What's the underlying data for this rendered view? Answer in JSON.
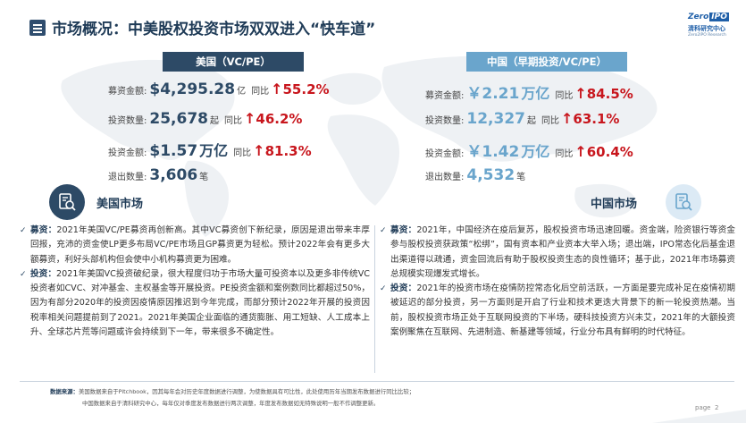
{
  "header": {
    "title": "市场概况：中美股权投资市场双双进入“快车道”",
    "logo": {
      "brand": "Zero",
      "brand_box": "IPO",
      "cn": "清科研究中心",
      "en": "Zero2IPO Research"
    }
  },
  "us": {
    "heading": "美国（VC/PE）",
    "stats": [
      {
        "label": "募资金额:",
        "value": "$4,295.28",
        "unit": "亿",
        "yoy_label": "同比",
        "arrow": "↑",
        "pct": "55.2%"
      },
      {
        "label": "投资数量:",
        "value": "25,678",
        "unit": "起",
        "yoy_label": "同比",
        "arrow": "↑",
        "pct": "46.2%"
      },
      {
        "label": "投资金额:",
        "value": "$1.57",
        "unit": "万亿",
        "yoy_label": "同比",
        "arrow": "↑",
        "pct": "81.3%"
      },
      {
        "label": "退出数量:",
        "value": "3,606",
        "unit": "笔"
      }
    ],
    "market_title": "美国市场",
    "paras": [
      {
        "kw": "募资：",
        "text": "2021年美国VC/PE募资再创新高。其中VC募资创下新纪录，原因是退出带来丰厚回报，充沛的资金使LP更多布局VC/PE市场且GP募资更为轻松。预计2022年会有更多大额募资，利好头部机构但会使中小机构募资更为困难。"
      },
      {
        "kw": "投资：",
        "text": "2021年美国VC投资破纪录，很大程度归功于市场大量可投资本以及更多非传统VC投资者如CVC、对冲基金、主权基金等开展投资。PE投资金额和案例数同比都超过50%，因为有部分2020年的投资因疫情原因推迟到今年完成，而部分预计2022年开展的投资因税率相关问题提前到了2021。2021年美国企业面临的通货膨胀、用工短缺、人工成本上升、全球芯片荒等问题或许会持续到下一年，带来很多不确定性。"
      }
    ]
  },
  "cn": {
    "heading": "中国（早期投资/VC/PE）",
    "stats": [
      {
        "label": "募资金额:",
        "value": "￥2.21",
        "unit": "万亿",
        "yoy_label": "同比",
        "arrow": "↑",
        "pct": "84.5%"
      },
      {
        "label": "投资数量:",
        "value": "12,327",
        "unit": "起",
        "yoy_label": "同比",
        "arrow": "↑",
        "pct": "63.1%"
      },
      {
        "label": "投资金额:",
        "value": "￥1.42",
        "unit": "万亿",
        "yoy_label": "同比",
        "arrow": "↑",
        "pct": "60.4%"
      },
      {
        "label": "退出数量:",
        "value": "4,532",
        "unit": "笔"
      }
    ],
    "market_title": "中国市场",
    "paras": [
      {
        "kw": "募资：",
        "text": "2021年，中国经济在疫后复苏，股权投资市场迅速回暖。资金端，险资银行等资金参与股权投资获政策“松绑”，国有资本和产业资本大举入场；退出端，IPO常态化后基金退出渠道得以疏通，资金回流后有助于股权投资生态的良性循环；基于此，2021年市场募资总规模实现爆发式增长。"
      },
      {
        "kw": "投资：",
        "text": "2021年的投资市场在疫情防控常态化后空前活跃，一方面是要完成补足在疫情初期被延迟的部分投资，另一方面则是开启了行业和技术更迭大背景下的新一轮投资热潮。当前，股权投资市场正处于互联网投资的下半场，硬科技投资方兴未艾，2021年的大额投资案例聚焦在互联网、先进制造、新基建等领域，行业分布具有鲜明的时代特征。"
      }
    ]
  },
  "footer": {
    "source_label": "数据来源：",
    "source_line1": "美国数据来自于Pitchbook，因其每年会对历史年度数据进行调整，为使数据具有可比性，此处使用历年当期发布数据进行同比比较；",
    "source_line2": "中国数据来自于清科研究中心，每年仅对季度发布数据进行两次调整，年度发布数据如无特殊说明一般不作调整更新。",
    "page_label": "page",
    "page_number": "2"
  },
  "colors": {
    "navy": "#2d4a66",
    "light_blue": "#6aa5cc",
    "red": "#c8161d"
  }
}
